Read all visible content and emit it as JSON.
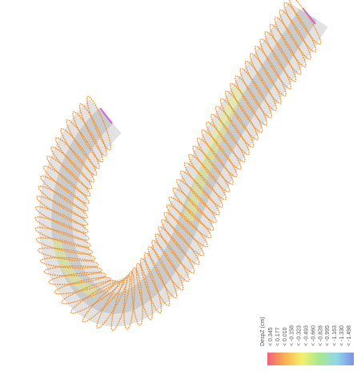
{
  "legend": {
    "title": "DespZ (cm)",
    "labels": [
      "< 0.345",
      "< 0.177",
      "< 0.010",
      "< -0.158",
      "< -0.323",
      "< -0.493",
      "< -0.660",
      "< -0.828",
      "< -0.995",
      "< -1.163",
      "< -1.330",
      "< -1.498"
    ]
  }
}
